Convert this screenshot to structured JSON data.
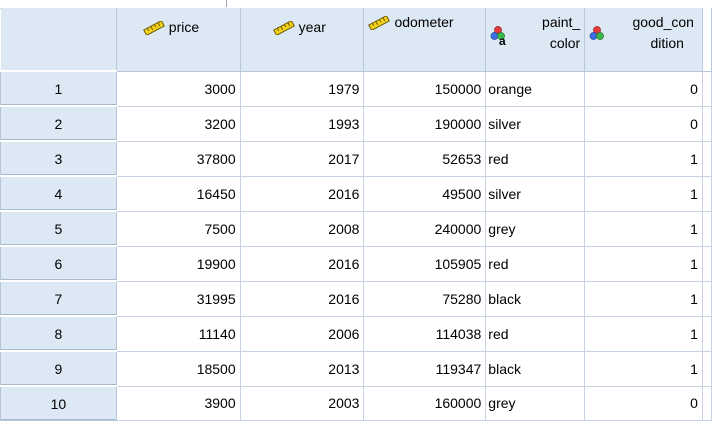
{
  "columns": [
    {
      "name": "price",
      "icon": "ruler-icon"
    },
    {
      "name": "year",
      "icon": "ruler-icon"
    },
    {
      "name": "odometer",
      "icon": "ruler-icon"
    },
    {
      "name_line1": "paint_",
      "name_line2": "color",
      "icon": "nominal-string-icon"
    },
    {
      "name_line1": "good_con",
      "name_line2": "dition",
      "icon": "nominal-icon"
    }
  ],
  "rows": [
    {
      "n": "1",
      "price": "3000",
      "year": "1979",
      "odometer": "150000",
      "paint_color": "orange",
      "good_condition": "0"
    },
    {
      "n": "2",
      "price": "3200",
      "year": "1993",
      "odometer": "190000",
      "paint_color": "silver",
      "good_condition": "0"
    },
    {
      "n": "3",
      "price": "37800",
      "year": "2017",
      "odometer": "52653",
      "paint_color": "red",
      "good_condition": "1"
    },
    {
      "n": "4",
      "price": "16450",
      "year": "2016",
      "odometer": "49500",
      "paint_color": "silver",
      "good_condition": "1"
    },
    {
      "n": "5",
      "price": "7500",
      "year": "2008",
      "odometer": "240000",
      "paint_color": "grey",
      "good_condition": "1"
    },
    {
      "n": "6",
      "price": "19900",
      "year": "2016",
      "odometer": "105905",
      "paint_color": "red",
      "good_condition": "1"
    },
    {
      "n": "7",
      "price": "31995",
      "year": "2016",
      "odometer": "75280",
      "paint_color": "black",
      "good_condition": "1"
    },
    {
      "n": "8",
      "price": "11140",
      "year": "2006",
      "odometer": "114038",
      "paint_color": "red",
      "good_condition": "1"
    },
    {
      "n": "9",
      "price": "18500",
      "year": "2013",
      "odometer": "119347",
      "paint_color": "black",
      "good_condition": "1"
    },
    {
      "n": "10",
      "price": "3900",
      "year": "2003",
      "odometer": "160000",
      "paint_color": "grey",
      "good_condition": "0"
    }
  ]
}
